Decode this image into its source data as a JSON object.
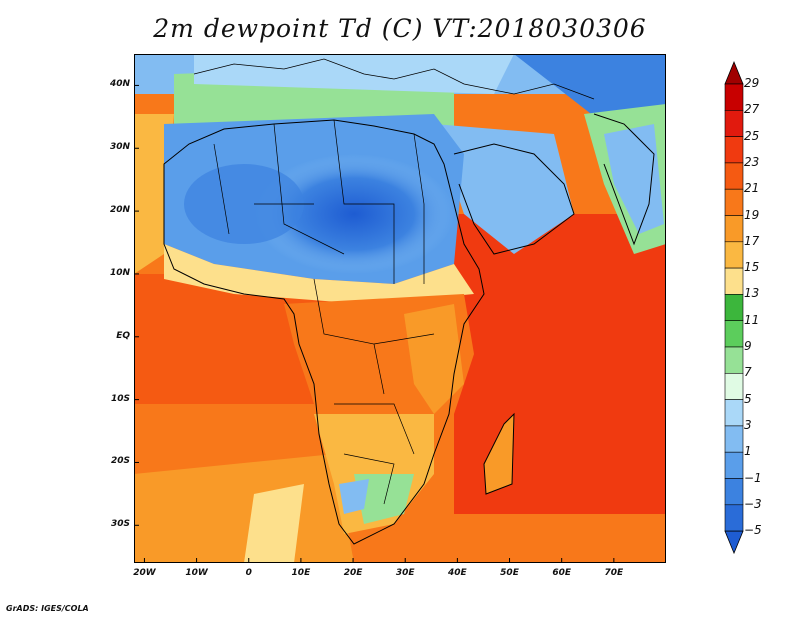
{
  "title": "2m dewpoint Td (C) VT:2018030306",
  "credit": "GrADS: IGES/COLA",
  "map": {
    "lat_ticks": [
      {
        "label": "40N",
        "lat": 40
      },
      {
        "label": "30N",
        "lat": 30
      },
      {
        "label": "20N",
        "lat": 20
      },
      {
        "label": "10N",
        "lat": 10
      },
      {
        "label": "EQ",
        "lat": 0
      },
      {
        "label": "10S",
        "lat": -10
      },
      {
        "label": "20S",
        "lat": -20
      },
      {
        "label": "30S",
        "lat": -30
      }
    ],
    "lon_ticks": [
      {
        "label": "20W",
        "lon": -20
      },
      {
        "label": "10W",
        "lon": -10
      },
      {
        "label": "0",
        "lon": 0
      },
      {
        "label": "10E",
        "lon": 10
      },
      {
        "label": "20E",
        "lon": 20
      },
      {
        "label": "30E",
        "lon": 30
      },
      {
        "label": "40E",
        "lon": 40
      },
      {
        "label": "50E",
        "lon": 50
      },
      {
        "label": "60E",
        "lon": 60
      },
      {
        "label": "70E",
        "lon": 70
      }
    ],
    "lon_range": [
      -22,
      80
    ],
    "lat_range": [
      -36,
      45
    ]
  },
  "colorbar": {
    "labels": [
      "29",
      "27",
      "25",
      "23",
      "21",
      "19",
      "17",
      "15",
      "13",
      "11",
      "9",
      "7",
      "5",
      "3",
      "1",
      "−1",
      "−3",
      "−5"
    ],
    "colors": [
      "#c80000",
      "#e11a0e",
      "#f03a10",
      "#f55a12",
      "#f8781a",
      "#f99a28",
      "#fab842",
      "#fde08c",
      "#3cb63c",
      "#5ccd5c",
      "#96e196",
      "#e0fbe4",
      "#aad8f8",
      "#82bcf2",
      "#5a9eea",
      "#3c82e0",
      "#2a6cd8"
    ],
    "top_cap": "#a00000",
    "bottom_cap": "#1e5cd2"
  }
}
